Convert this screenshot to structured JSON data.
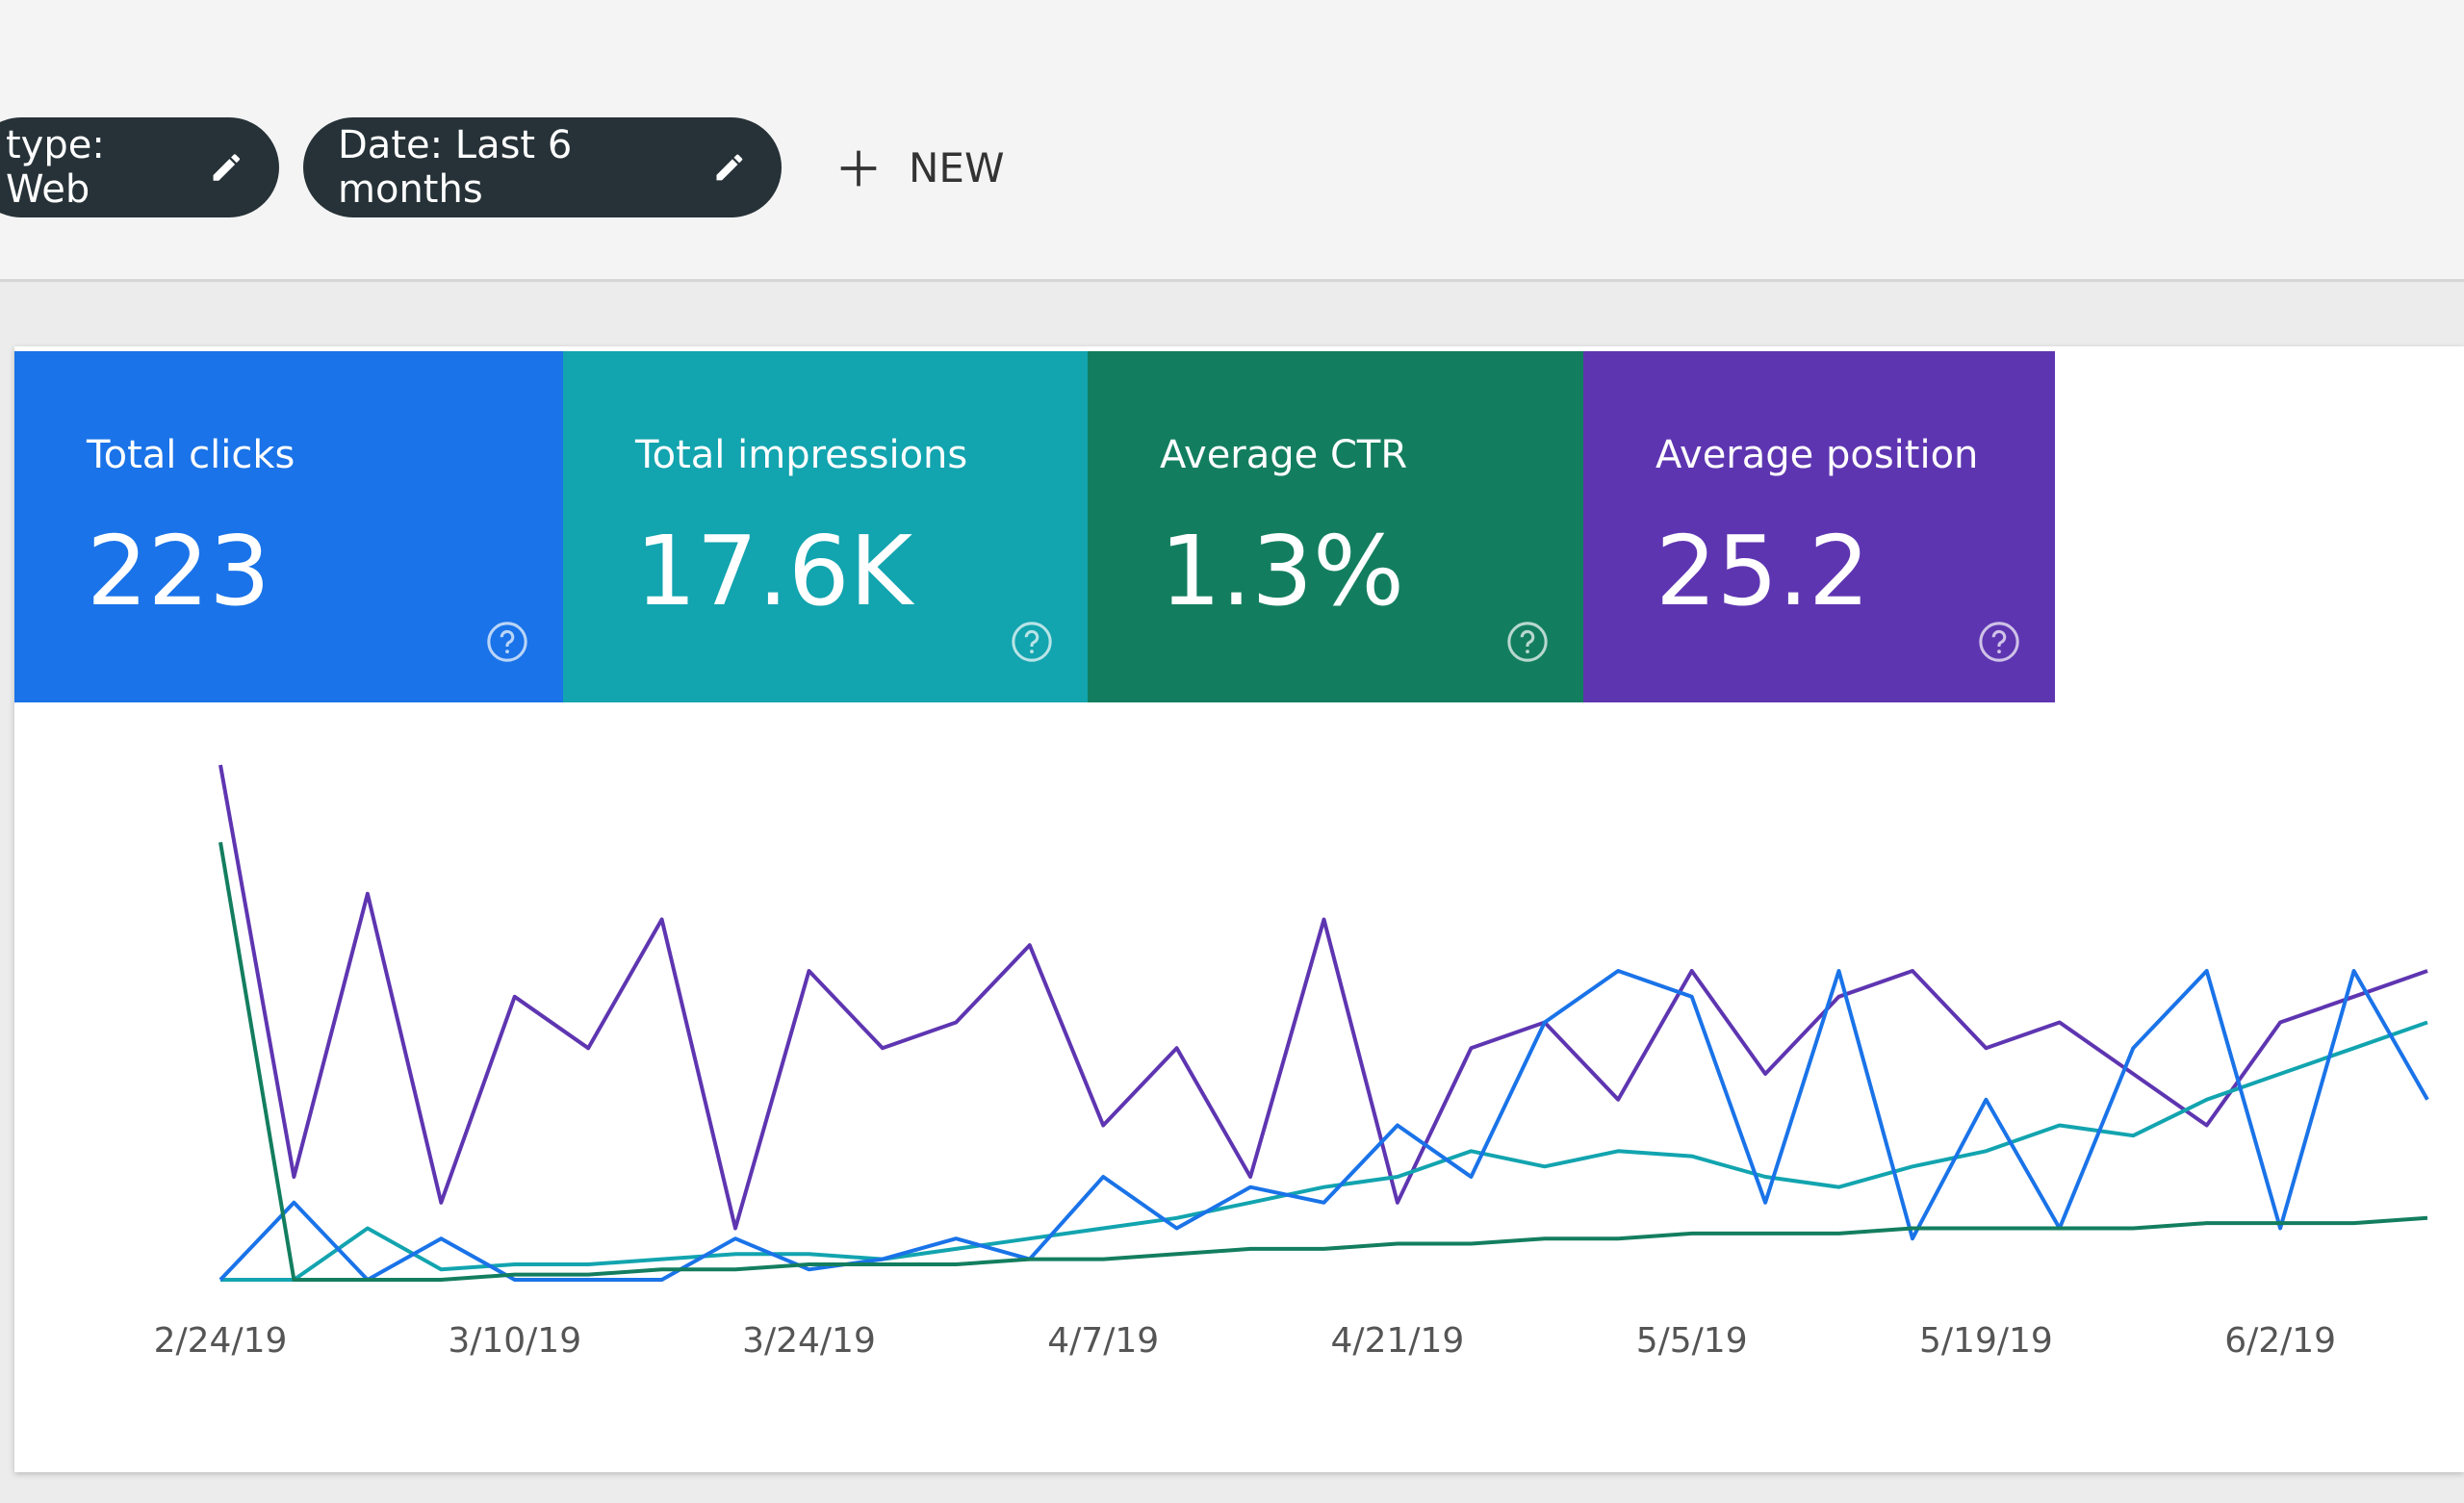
{
  "filters": [
    "type: Web",
    "Date: Last 6 months"
  ],
  "new_button": "NEW",
  "chart_data": {
    "type": "line",
    "categories": [
      "2/24/19",
      null,
      null,
      null,
      "3/10/19",
      null,
      null,
      null,
      "3/24/19",
      null,
      null,
      null,
      "4/7/19",
      null,
      null,
      null,
      "4/21/19",
      null,
      null,
      null,
      "5/5/19",
      null,
      null,
      null,
      "5/19/19",
      null,
      null,
      null,
      "6/2/19",
      null,
      null
    ],
    "series": [
      {
        "name": "Total clicks",
        "total": "223",
        "color": "#1a73e8",
        "values": [
          0,
          15,
          0,
          8,
          0,
          0,
          0,
          8,
          2,
          4,
          8,
          4,
          20,
          10,
          18,
          15,
          30,
          20,
          50,
          60,
          55,
          15,
          60,
          8,
          35,
          10,
          45,
          60,
          10,
          60,
          35
        ]
      },
      {
        "name": "Total impressions",
        "total": "17.6K",
        "color": "#12a4af",
        "values": [
          0,
          0,
          10,
          2,
          3,
          3,
          4,
          5,
          5,
          4,
          6,
          8,
          10,
          12,
          15,
          18,
          20,
          25,
          22,
          25,
          24,
          20,
          18,
          22,
          25,
          30,
          28,
          35,
          40,
          45,
          50
        ]
      },
      {
        "name": "Average CTR",
        "total": "1.3%",
        "color": "#137e5f",
        "values": [
          85,
          0,
          0,
          0,
          1,
          1,
          2,
          2,
          3,
          3,
          3,
          4,
          4,
          5,
          6,
          6,
          7,
          7,
          8,
          8,
          9,
          9,
          9,
          10,
          10,
          10,
          10,
          11,
          11,
          11,
          12
        ]
      },
      {
        "name": "Average position",
        "total": "25.2",
        "color": "#5e35b1",
        "values": [
          100,
          20,
          75,
          15,
          55,
          45,
          70,
          10,
          60,
          45,
          50,
          65,
          30,
          45,
          20,
          70,
          15,
          45,
          50,
          35,
          60,
          40,
          55,
          60,
          45,
          50,
          40,
          30,
          50,
          55,
          60
        ]
      }
    ]
  }
}
